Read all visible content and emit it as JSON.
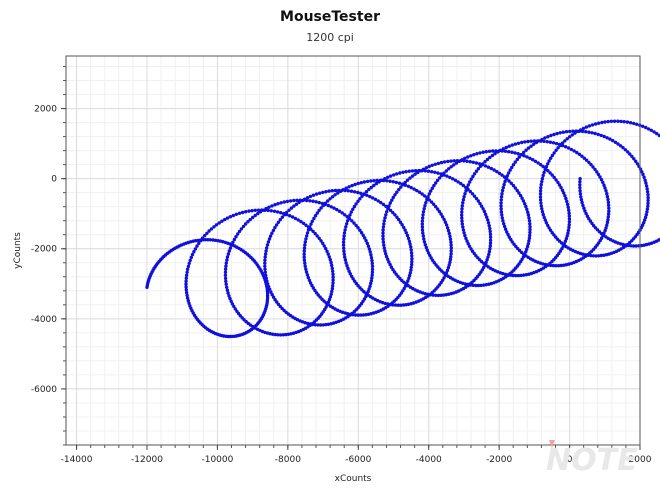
{
  "chart_data": {
    "type": "scatter",
    "title": "MouseTester",
    "subtitle": "1200 cpi",
    "xlabel": "xCounts",
    "ylabel": "yCounts",
    "xlim": [
      -14300,
      2000
    ],
    "ylim": [
      -7600,
      3500
    ],
    "xticks": [
      -14000,
      -12000,
      -10000,
      -8000,
      -6000,
      -4000,
      -2000,
      0,
      2000
    ],
    "yticks": [
      -6000,
      -4000,
      -2000,
      0,
      2000
    ],
    "grid": true,
    "series": [
      {
        "path_model": "trochoid",
        "start": [
          -12000,
          -3100
        ],
        "end": [
          300,
          0
        ],
        "loops": 11,
        "loop_radius_x": 1800,
        "loop_radius_y": 1850,
        "point_count": 1500,
        "color": "#1010dd"
      }
    ]
  },
  "watermark": {
    "text": "NOTE"
  }
}
